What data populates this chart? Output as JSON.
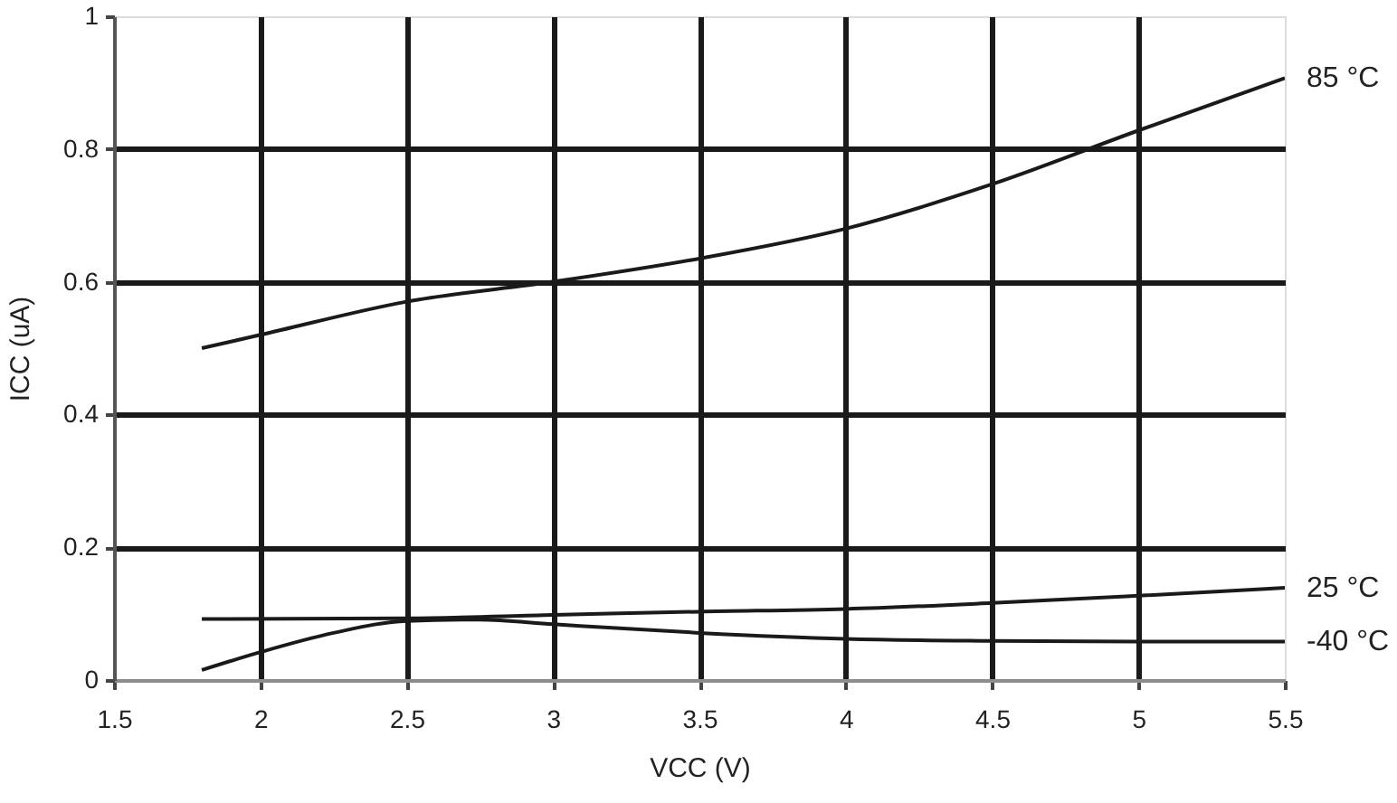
{
  "chart_data": {
    "type": "line",
    "xlabel": "VCC (V)",
    "ylabel": "ICC (uA)",
    "xlim": [
      1.5,
      5.5
    ],
    "xticks": [
      1.5,
      2,
      2.5,
      3,
      3.5,
      4,
      4.5,
      5,
      5.5
    ],
    "ylim": [
      0,
      1
    ],
    "yticks": [
      0,
      0.2,
      0.4,
      0.6,
      0.8,
      1
    ],
    "grid": true,
    "legend": false,
    "marker": "none",
    "line_style": "solid",
    "series": [
      {
        "name": "85 °C",
        "color": "#1a1a1a",
        "x": [
          1.8,
          2,
          2.5,
          3,
          3.5,
          4,
          4.5,
          5,
          5.5
        ],
        "values": [
          0.5,
          0.52,
          0.57,
          0.6,
          0.635,
          0.68,
          0.747,
          0.828,
          0.907
        ]
      },
      {
        "name": "25 °C",
        "color": "#1a1a1a",
        "x": [
          1.8,
          2.5,
          3,
          3.5,
          4,
          4.5,
          5,
          5.5
        ],
        "values": [
          0.092,
          0.093,
          0.098,
          0.103,
          0.107,
          0.116,
          0.127,
          0.139
        ]
      },
      {
        "name": "-40 °C",
        "color": "#1a1a1a",
        "x": [
          1.8,
          2,
          2.25,
          2.5,
          2.75,
          3,
          3.5,
          4,
          4.5,
          5,
          5.5
        ],
        "values": [
          0.015,
          0.042,
          0.071,
          0.089,
          0.091,
          0.084,
          0.071,
          0.062,
          0.059,
          0.058,
          0.058
        ]
      }
    ]
  }
}
